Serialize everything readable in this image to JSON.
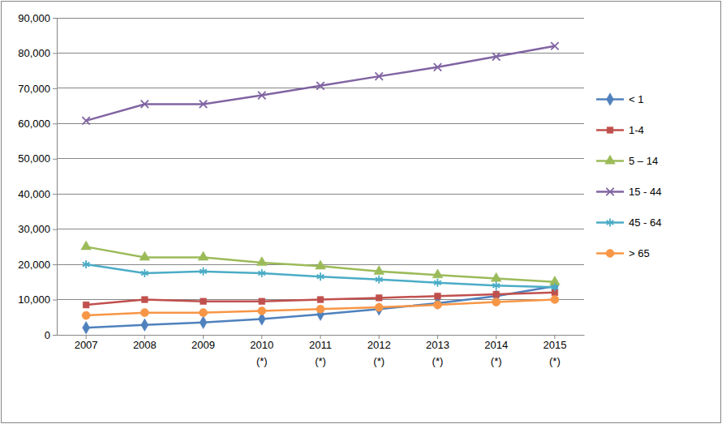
{
  "chart_data": {
    "type": "line",
    "categories": [
      "2007",
      "2008",
      "2009",
      "2010\n(*)",
      "2011\n(*)",
      "2012\n(*)",
      "2013\n(*)",
      "2014\n(*)",
      "2015\n(*)"
    ],
    "series": [
      {
        "name": "< 1",
        "color": "#4f81bd",
        "marker": "diamond",
        "values": [
          2000,
          2800,
          3500,
          4500,
          5800,
          7300,
          9000,
          11000,
          13800
        ]
      },
      {
        "name": "1-4",
        "color": "#c0504d",
        "marker": "square",
        "values": [
          8500,
          10000,
          9500,
          9500,
          10000,
          10500,
          11000,
          11500,
          12000
        ]
      },
      {
        "name": "5 – 14",
        "color": "#9bbb59",
        "marker": "triangle",
        "values": [
          25000,
          22000,
          22000,
          20500,
          19500,
          18000,
          17000,
          16000,
          15000
        ]
      },
      {
        "name": "15 - 44",
        "color": "#8064a2",
        "marker": "x",
        "values": [
          60800,
          65500,
          65500,
          68000,
          70700,
          73400,
          76000,
          79000,
          82000
        ]
      },
      {
        "name": "45 - 64",
        "color": "#4bacc6",
        "marker": "asterisk",
        "values": [
          20000,
          17500,
          18000,
          17500,
          16500,
          15700,
          14800,
          14000,
          13500
        ]
      },
      {
        "name": "> 65",
        "color": "#f79646",
        "marker": "circle",
        "values": [
          5500,
          6300,
          6300,
          6800,
          7300,
          7800,
          8500,
          9300,
          10000
        ]
      }
    ],
    "ylim": [
      0,
      90000
    ],
    "yticks": [
      0,
      {
        "value": 10000,
        "label": "10,000"
      },
      {
        "value": 20000,
        "label": "20,000"
      },
      {
        "value": 30000,
        "label": "30,000"
      },
      {
        "value": 40000,
        "label": "40,000"
      },
      {
        "value": 50000,
        "label": "50,000"
      },
      {
        "value": 60000,
        "label": "60,000"
      },
      {
        "value": 70000,
        "label": "70,000"
      },
      {
        "value": 80000,
        "label": "80,000"
      },
      {
        "value": 90000,
        "label": "90,000"
      }
    ],
    "grid": true,
    "legend": "right"
  }
}
